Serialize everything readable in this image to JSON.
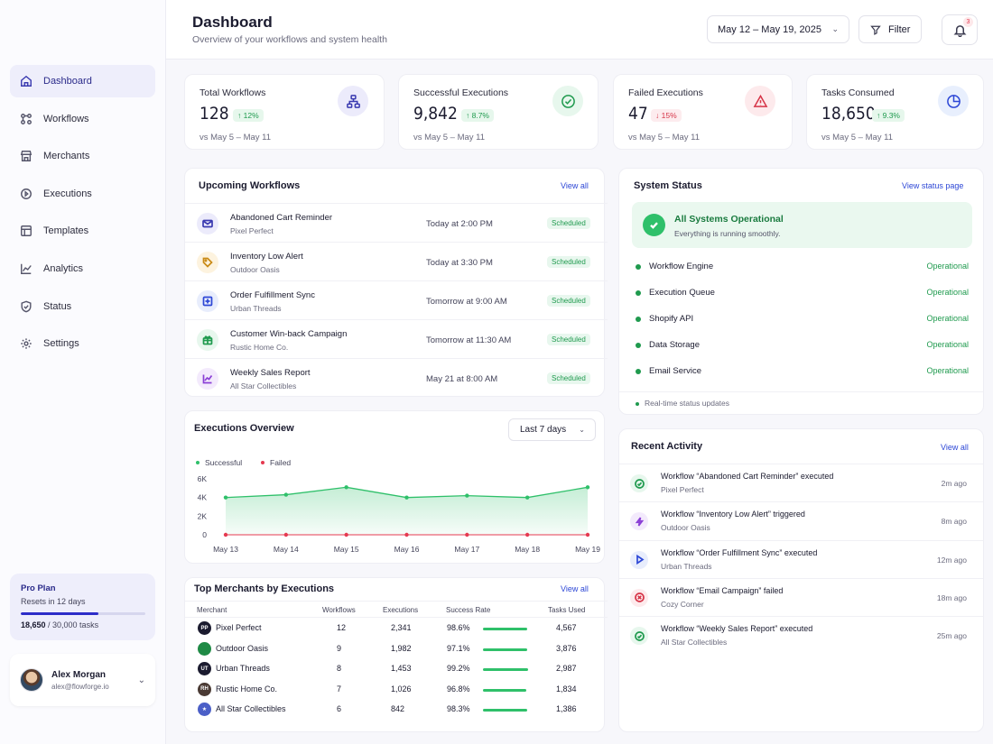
{
  "nav": {
    "items": [
      {
        "label": "Dashboard",
        "active": true
      },
      {
        "label": "Workflows"
      },
      {
        "label": "Merchants"
      },
      {
        "label": "Executions"
      },
      {
        "label": "Templates"
      },
      {
        "label": "Analytics"
      },
      {
        "label": "Status"
      },
      {
        "label": "Settings"
      }
    ]
  },
  "plan": {
    "name": "Pro Plan",
    "resets": "Resets in 12 days",
    "used": "18,650",
    "total": " / 30,000 tasks",
    "usage_fraction": 0.62
  },
  "user": {
    "name": "Alex Morgan",
    "email": "alex@flowforge.io"
  },
  "header": {
    "title": "Dashboard",
    "subtitle": "Overview of your workflows and system health",
    "date_range": "May 12 – May 19, 2025",
    "filter_label": "Filter",
    "notification_count": "3"
  },
  "stats": [
    {
      "label": "Total Workflows",
      "value": "128",
      "delta": "↑ 12%",
      "direction": "up",
      "compare": "vs May 5 – May 11",
      "icon": "sitemap-icon",
      "color": "#ecebfb"
    },
    {
      "label": "Successful Executions",
      "value": "9,842",
      "delta": "↑ 8.7%",
      "direction": "up",
      "compare": "vs May 5 – May 11",
      "icon": "check-circle-icon",
      "color": "#e7f7ed"
    },
    {
      "label": "Failed Executions",
      "value": "47",
      "delta": "↓ 15%",
      "direction": "down",
      "compare": "vs May 5 – May 11",
      "icon": "warning-icon",
      "color": "#fdeaec"
    },
    {
      "label": "Tasks Consumed",
      "value": "18,650",
      "delta": "↑ 9.3%",
      "direction": "up",
      "compare": "vs May 5 – May 11",
      "icon": "pie-chart-icon",
      "color": "#e8effd"
    }
  ],
  "upcoming": {
    "title": "Upcoming Workflows",
    "link": "View all",
    "rows": [
      {
        "name": "Abandoned Cart Reminder",
        "merchant": "Pixel Perfect",
        "time": "Today at 2:00 PM",
        "status": "Scheduled",
        "icon": "mail-icon"
      },
      {
        "name": "Inventory Low Alert",
        "merchant": "Outdoor Oasis",
        "time": "Today at 3:30 PM",
        "status": "Scheduled",
        "icon": "tag-icon"
      },
      {
        "name": "Order Fulfillment Sync",
        "merchant": "Urban Threads",
        "time": "Tomorrow at 9:00 AM",
        "status": "Scheduled",
        "icon": "box-icon"
      },
      {
        "name": "Customer Win-back Campaign",
        "merchant": "Rustic Home Co.",
        "time": "Tomorrow at 11:30 AM",
        "status": "Scheduled",
        "icon": "gift-icon"
      },
      {
        "name": "Weekly Sales Report",
        "merchant": "All Star Collectibles",
        "time": "May 21 at 8:00 AM",
        "status": "Scheduled",
        "icon": "chart-line-icon"
      }
    ]
  },
  "system_status": {
    "title": "System Status",
    "link": "View status page",
    "banner_title": "All Systems Operational",
    "banner_sub": "Everything is running smoothly.",
    "services": [
      {
        "name": "Workflow Engine",
        "state": "Operational"
      },
      {
        "name": "Execution Queue",
        "state": "Operational"
      },
      {
        "name": "Shopify API",
        "state": "Operational"
      },
      {
        "name": "Data Storage",
        "state": "Operational"
      },
      {
        "name": "Email Service",
        "state": "Operational"
      }
    ],
    "footer": "Real-time status updates"
  },
  "executions": {
    "title": "Executions Overview",
    "range": "Last 7 days",
    "legend_success": "Successful",
    "legend_failed": "Failed"
  },
  "chart_data": {
    "type": "area",
    "categories": [
      "May 13",
      "May 14",
      "May 15",
      "May 16",
      "May 17",
      "May 18",
      "May 19"
    ],
    "series": [
      {
        "name": "Successful",
        "values": [
          4000,
          4300,
          5100,
          4000,
          4200,
          4000,
          5100
        ],
        "color": "#2fc06a"
      },
      {
        "name": "Failed",
        "values": [
          0,
          0,
          0,
          0,
          0,
          0,
          0
        ],
        "color": "#e53950"
      }
    ],
    "yticks": [
      "0",
      "2K",
      "4K",
      "6K"
    ],
    "ylim": [
      0,
      6000
    ],
    "grid": false,
    "legend": "top-left"
  },
  "merchants": {
    "title": "Top Merchants by Executions",
    "link": "View all",
    "columns": [
      "Merchant",
      "Workflows",
      "Executions",
      "Success Rate",
      "Tasks Used"
    ],
    "rows": [
      {
        "logo": "PP",
        "name": "Pixel Perfect",
        "workflows": "12",
        "executions": "2,341",
        "rate": "98.6%",
        "rate_value": 0.986,
        "tasks": "4,567",
        "color": "#1b1b2f"
      },
      {
        "logo": "",
        "name": "Outdoor Oasis",
        "workflows": "9",
        "executions": "1,982",
        "rate": "97.1%",
        "rate_value": 0.971,
        "tasks": "3,876",
        "color": "#1f8a45"
      },
      {
        "logo": "UT",
        "name": "Urban Threads",
        "workflows": "8",
        "executions": "1,453",
        "rate": "99.2%",
        "rate_value": 0.992,
        "tasks": "2,987",
        "color": "#1b1b2f"
      },
      {
        "logo": "RH",
        "name": "Rustic Home Co.",
        "workflows": "7",
        "executions": "1,026",
        "rate": "96.8%",
        "rate_value": 0.968,
        "tasks": "1,834",
        "color": "#4a3a34"
      },
      {
        "logo": "★",
        "name": "All Star Collectibles",
        "workflows": "6",
        "executions": "842",
        "rate": "98.3%",
        "rate_value": 0.983,
        "tasks": "1,386",
        "color": "#4b5fc7"
      }
    ]
  },
  "activity": {
    "title": "Recent Activity",
    "link": "View all",
    "rows": [
      {
        "title": "Workflow “Abandoned Cart Reminder” executed",
        "merchant": "Pixel Perfect",
        "time": "2m ago",
        "icon": "check-circle-icon",
        "color": "#1f9a4e",
        "bg": "#e7f7ed"
      },
      {
        "title": "Workflow “Inventory Low Alert” triggered",
        "merchant": "Outdoor Oasis",
        "time": "8m ago",
        "icon": "lightning-icon",
        "color": "#8b3fd6",
        "bg": "#f3eafc"
      },
      {
        "title": "Workflow “Order Fulfillment Sync” executed",
        "merchant": "Urban Threads",
        "time": "12m ago",
        "icon": "play-icon",
        "color": "#2d47d6",
        "bg": "#e8edfc"
      },
      {
        "title": "Workflow “Email Campaign” failed",
        "merchant": "Cozy Corner",
        "time": "18m ago",
        "icon": "error-icon",
        "color": "#d63447",
        "bg": "#fdeaec"
      },
      {
        "title": "Workflow “Weekly Sales Report” executed",
        "merchant": "All Star Collectibles",
        "time": "25m ago",
        "icon": "check-circle-icon",
        "color": "#1f9a4e",
        "bg": "#e7f7ed"
      }
    ]
  }
}
